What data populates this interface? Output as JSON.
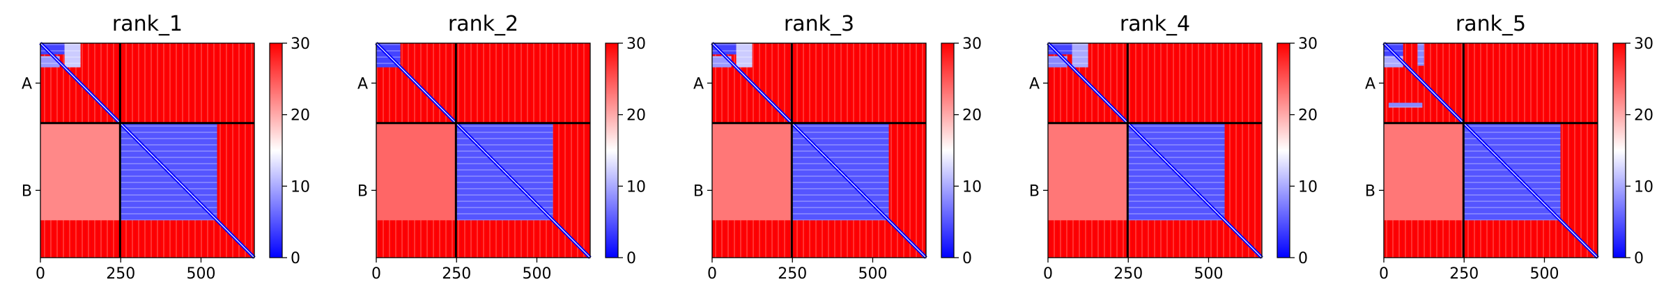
{
  "chart_data": [
    {
      "type": "heatmap",
      "title": "rank_1",
      "x_ticks": [
        0,
        250,
        500
      ],
      "xlim": [
        0,
        666
      ],
      "ylim": [
        0,
        666
      ],
      "chain_boundary": 248,
      "y_chain_labels": [
        {
          "label": "A",
          "value": 124
        },
        {
          "label": "B",
          "value": 457
        }
      ],
      "colorbar": {
        "min": 0,
        "max": 30,
        "ticks": [
          0,
          10,
          20,
          30
        ],
        "colormap": "bwr"
      },
      "blue_blocks": [
        {
          "x": [
            0,
            75
          ],
          "y": [
            0,
            35
          ],
          "value": 4
        },
        {
          "x": [
            75,
            125
          ],
          "y": [
            0,
            75
          ],
          "value": 12
        },
        {
          "x": [
            0,
            60
          ],
          "y": [
            40,
            75
          ],
          "value": 9
        },
        {
          "x": [
            250,
            550
          ],
          "y": [
            250,
            550
          ],
          "value": 5
        },
        {
          "x": [
            0,
            248
          ],
          "y": [
            250,
            550
          ],
          "value": 22
        }
      ]
    },
    {
      "type": "heatmap",
      "title": "rank_2",
      "x_ticks": [
        0,
        250,
        500
      ],
      "xlim": [
        0,
        666
      ],
      "ylim": [
        0,
        666
      ],
      "chain_boundary": 248,
      "y_chain_labels": [
        {
          "label": "A",
          "value": 124
        },
        {
          "label": "B",
          "value": 457
        }
      ],
      "colorbar": {
        "min": 0,
        "max": 30,
        "ticks": [
          0,
          10,
          20,
          30
        ],
        "colormap": "bwr"
      },
      "blue_blocks": [
        {
          "x": [
            0,
            75
          ],
          "y": [
            0,
            75
          ],
          "value": 4
        },
        {
          "x": [
            250,
            550
          ],
          "y": [
            250,
            550
          ],
          "value": 5
        },
        {
          "x": [
            0,
            248
          ],
          "y": [
            250,
            550
          ],
          "value": 24
        }
      ]
    },
    {
      "type": "heatmap",
      "title": "rank_3",
      "x_ticks": [
        0,
        250,
        500
      ],
      "xlim": [
        0,
        666
      ],
      "ylim": [
        0,
        666
      ],
      "chain_boundary": 248,
      "y_chain_labels": [
        {
          "label": "A",
          "value": 124
        },
        {
          "label": "B",
          "value": 457
        }
      ],
      "colorbar": {
        "min": 0,
        "max": 30,
        "ticks": [
          0,
          10,
          20,
          30
        ],
        "colormap": "bwr"
      },
      "blue_blocks": [
        {
          "x": [
            0,
            75
          ],
          "y": [
            0,
            35
          ],
          "value": 4
        },
        {
          "x": [
            75,
            125
          ],
          "y": [
            0,
            75
          ],
          "value": 12
        },
        {
          "x": [
            0,
            60
          ],
          "y": [
            40,
            75
          ],
          "value": 9
        },
        {
          "x": [
            250,
            550
          ],
          "y": [
            250,
            550
          ],
          "value": 5
        },
        {
          "x": [
            0,
            248
          ],
          "y": [
            250,
            550
          ],
          "value": 23
        }
      ]
    },
    {
      "type": "heatmap",
      "title": "rank_4",
      "x_ticks": [
        0,
        250,
        500
      ],
      "xlim": [
        0,
        666
      ],
      "ylim": [
        0,
        666
      ],
      "chain_boundary": 248,
      "y_chain_labels": [
        {
          "label": "A",
          "value": 124
        },
        {
          "label": "B",
          "value": 457
        }
      ],
      "colorbar": {
        "min": 0,
        "max": 30,
        "ticks": [
          0,
          10,
          20,
          30
        ],
        "colormap": "bwr"
      },
      "blue_blocks": [
        {
          "x": [
            0,
            75
          ],
          "y": [
            0,
            35
          ],
          "value": 4
        },
        {
          "x": [
            75,
            125
          ],
          "y": [
            0,
            75
          ],
          "value": 10
        },
        {
          "x": [
            0,
            60
          ],
          "y": [
            40,
            75
          ],
          "value": 8
        },
        {
          "x": [
            250,
            550
          ],
          "y": [
            250,
            550
          ],
          "value": 5
        },
        {
          "x": [
            0,
            248
          ],
          "y": [
            250,
            550
          ],
          "value": 23
        }
      ]
    },
    {
      "type": "heatmap",
      "title": "rank_5",
      "x_ticks": [
        0,
        250,
        500
      ],
      "xlim": [
        0,
        666
      ],
      "ylim": [
        0,
        666
      ],
      "chain_boundary": 248,
      "y_chain_labels": [
        {
          "label": "A",
          "value": 124
        },
        {
          "label": "B",
          "value": 457
        }
      ],
      "colorbar": {
        "min": 0,
        "max": 30,
        "ticks": [
          0,
          10,
          20,
          30
        ],
        "colormap": "bwr"
      },
      "blue_blocks": [
        {
          "x": [
            0,
            60
          ],
          "y": [
            0,
            40
          ],
          "value": 4
        },
        {
          "x": [
            105,
            125
          ],
          "y": [
            0,
            70
          ],
          "value": 8
        },
        {
          "x": [
            0,
            60
          ],
          "y": [
            40,
            75
          ],
          "value": 10
        },
        {
          "x": [
            15,
            120
          ],
          "y": [
            185,
            200
          ],
          "value": 8
        },
        {
          "x": [
            250,
            550
          ],
          "y": [
            250,
            550
          ],
          "value": 5
        },
        {
          "x": [
            0,
            248
          ],
          "y": [
            250,
            550
          ],
          "value": 23
        }
      ]
    }
  ]
}
